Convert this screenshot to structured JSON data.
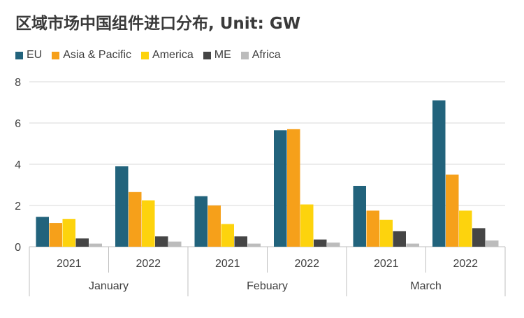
{
  "title": "区域市场中国组件进口分布, Unit: GW",
  "legend": [
    {
      "name": "EU",
      "color": "#22637c"
    },
    {
      "name": "Asia & Pacific",
      "color": "#f6a01a"
    },
    {
      "name": "America",
      "color": "#fdd30d"
    },
    {
      "name": "ME",
      "color": "#454545"
    },
    {
      "name": "Africa",
      "color": "#bcbcbc"
    }
  ],
  "chart_data": {
    "type": "bar",
    "title": "区域市场中国组件进口分布, Unit: GW",
    "unit": "GW",
    "ylim": [
      0,
      8
    ],
    "yticks": [
      0,
      2,
      4,
      6,
      8
    ],
    "grid": true,
    "legend_position": "top-left",
    "months": [
      "January",
      "Febuary",
      "March"
    ],
    "categories": [
      "2021",
      "2022",
      "2021",
      "2022",
      "2021",
      "2022"
    ],
    "series": [
      {
        "name": "EU",
        "color": "#22637c",
        "values": [
          1.45,
          3.9,
          2.45,
          5.65,
          2.95,
          7.1
        ]
      },
      {
        "name": "Asia & Pacific",
        "color": "#f6a01a",
        "values": [
          1.15,
          2.65,
          2.0,
          5.7,
          1.75,
          3.5
        ]
      },
      {
        "name": "America",
        "color": "#fdd30d",
        "values": [
          1.35,
          2.25,
          1.1,
          2.05,
          1.3,
          1.75
        ]
      },
      {
        "name": "ME",
        "color": "#454545",
        "values": [
          0.4,
          0.5,
          0.5,
          0.35,
          0.75,
          0.9
        ]
      },
      {
        "name": "Africa",
        "color": "#bcbcbc",
        "values": [
          0.15,
          0.25,
          0.15,
          0.2,
          0.15,
          0.3
        ]
      }
    ]
  }
}
